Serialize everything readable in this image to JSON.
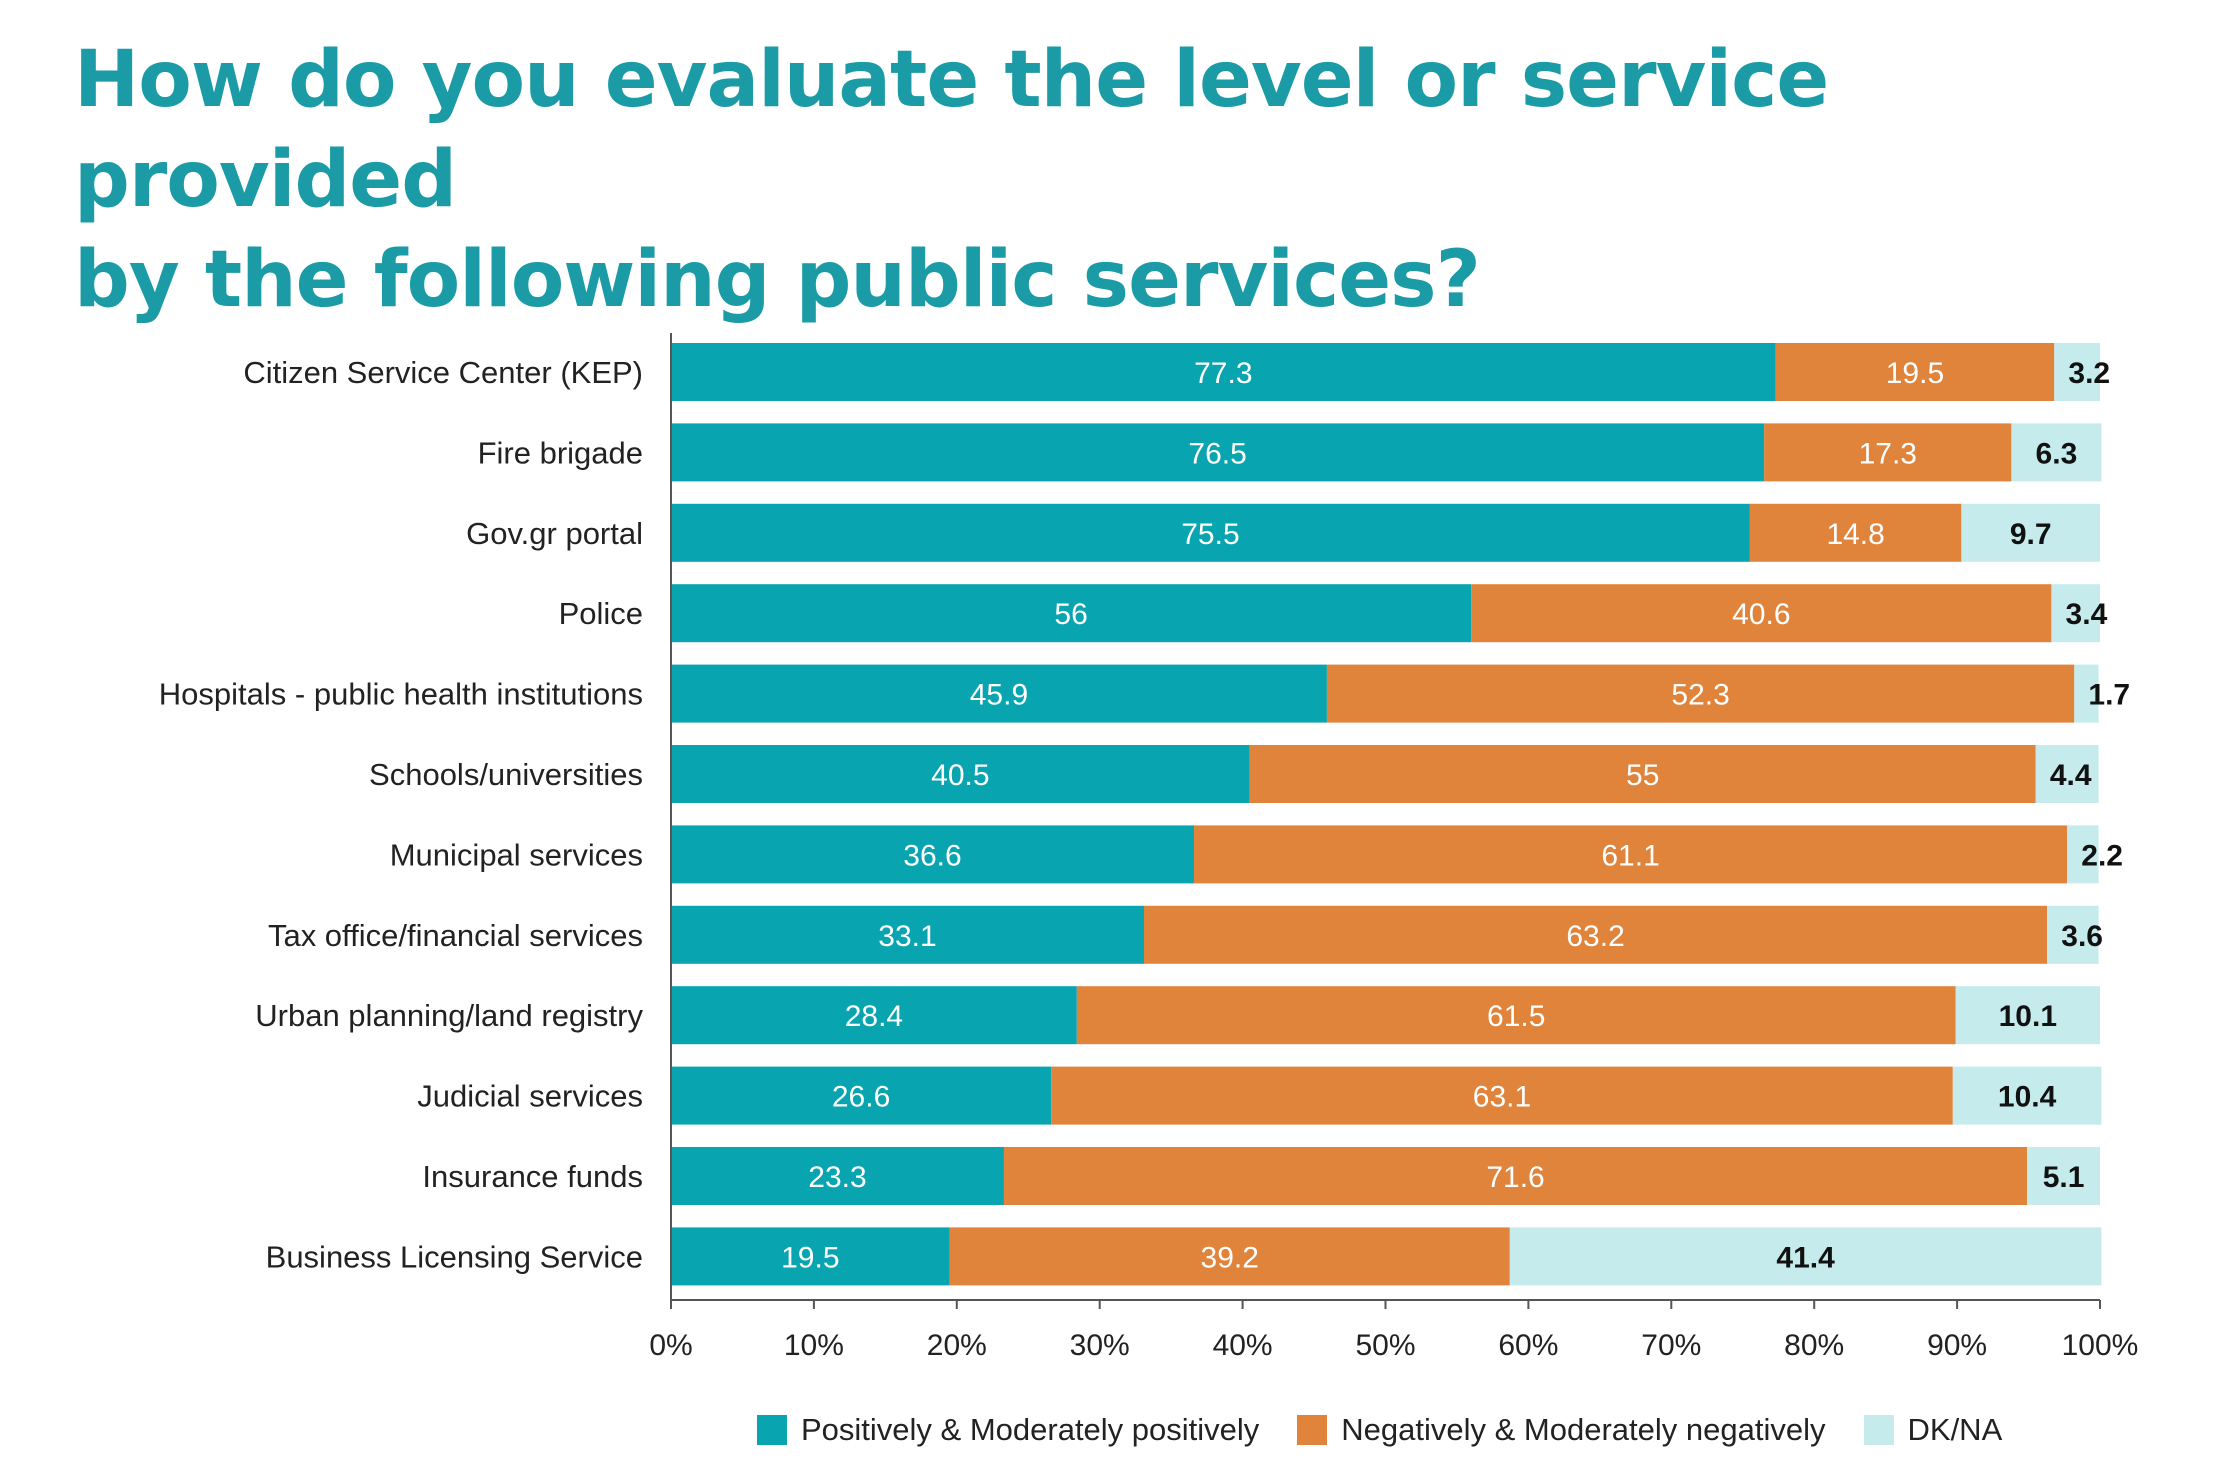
{
  "title_line1": "How do you evaluate the level or service provided",
  "title_line2": "by the following public services?",
  "chart_data": {
    "type": "bar",
    "orientation": "horizontal",
    "stacked": true,
    "percent_scale": true,
    "categories": [
      "Citizen Service Center (KEP)",
      "Fire brigade",
      "Gov.gr portal",
      "Police",
      "Hospitals - public health institutions",
      "Schools/universities",
      "Municipal services",
      "Tax office/financial services",
      "Urban planning/land registry",
      "Judicial services",
      "Insurance funds",
      "Business Licensing Service"
    ],
    "series": [
      {
        "name": "Positively & Moderately positively",
        "color": "#08a4b0",
        "label_color": "#ffffff",
        "values": [
          77.3,
          76.5,
          75.5,
          56,
          45.9,
          40.5,
          36.6,
          33.1,
          28.4,
          26.6,
          23.3,
          19.5
        ]
      },
      {
        "name": "Negatively & Moderately negatively",
        "color": "#e0843b",
        "label_color": "#ffffff",
        "values": [
          19.5,
          17.3,
          14.8,
          40.6,
          52.3,
          55,
          61.1,
          63.2,
          61.5,
          63.1,
          71.6,
          39.2
        ]
      },
      {
        "name": "DK/NA",
        "color": "#c5ebed",
        "label_color": "#111111",
        "values": [
          3.2,
          6.3,
          9.7,
          3.4,
          1.7,
          4.4,
          2.2,
          3.6,
          10.1,
          10.4,
          5.1,
          41.4
        ]
      }
    ],
    "x_ticks": [
      "0%",
      "10%",
      "20%",
      "30%",
      "40%",
      "50%",
      "60%",
      "70%",
      "80%",
      "90%",
      "100%"
    ],
    "xlim": [
      0,
      100
    ],
    "grid": false,
    "legend_position": "bottom"
  }
}
